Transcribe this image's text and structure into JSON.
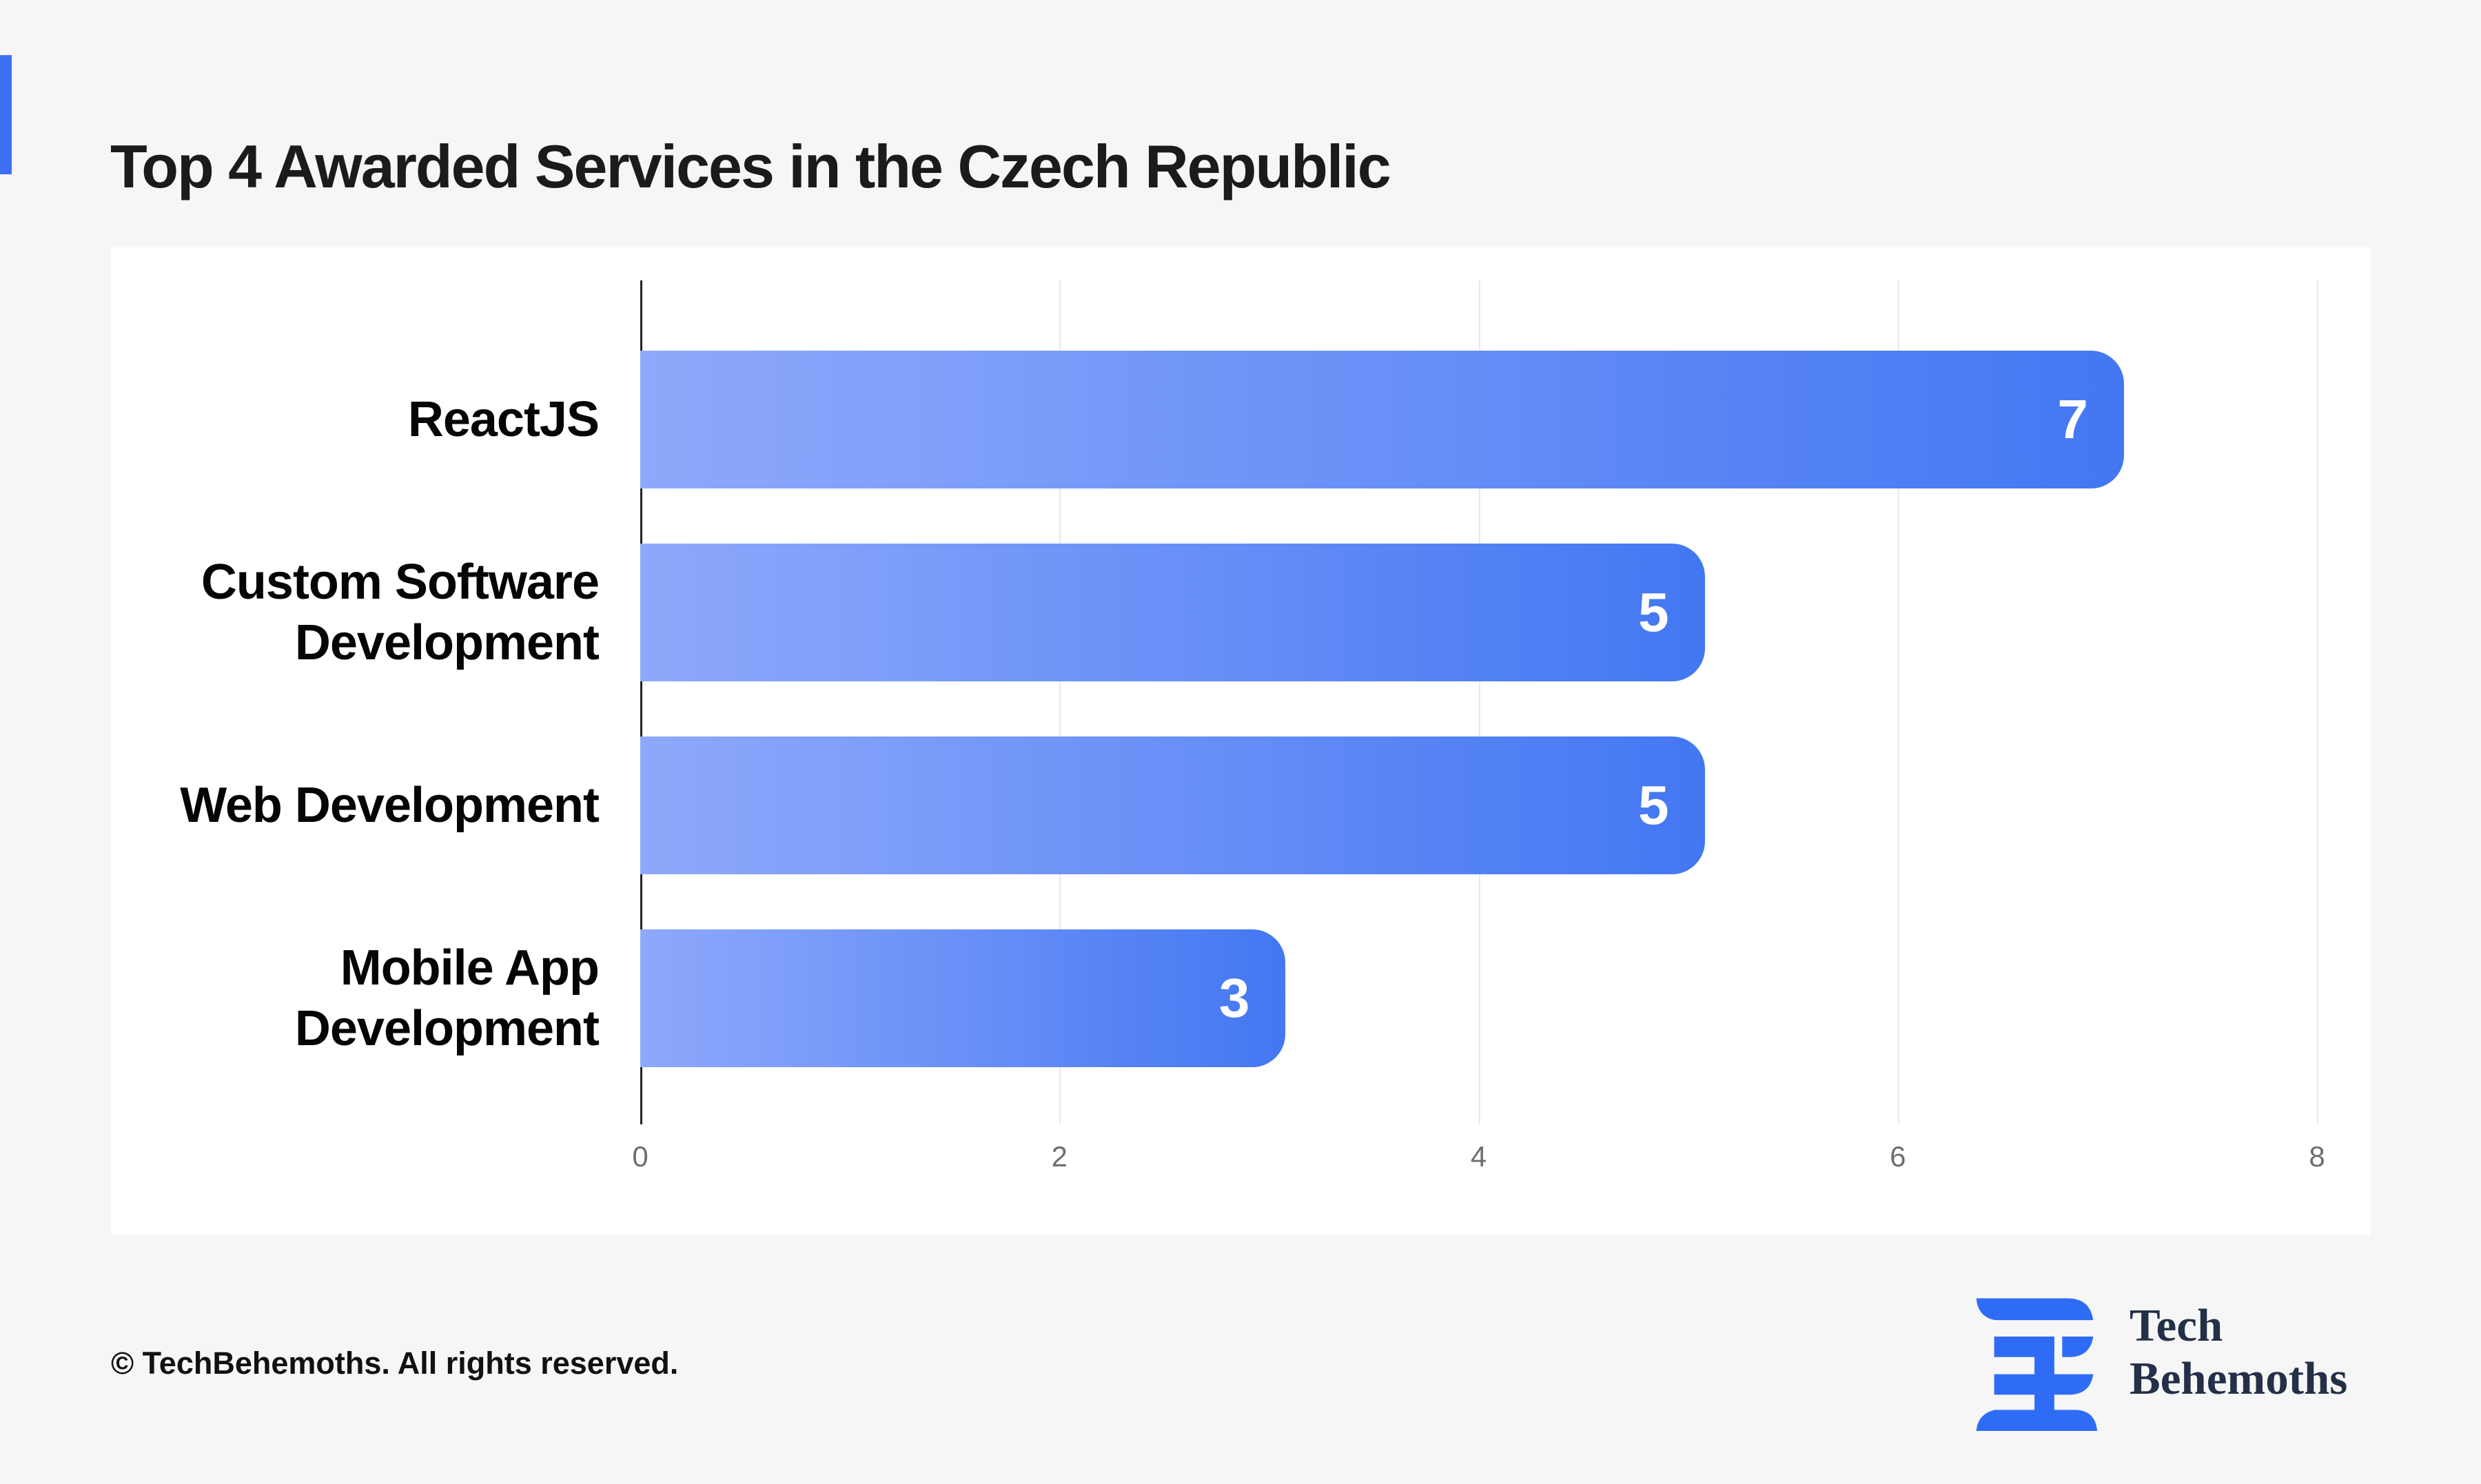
{
  "page": {
    "title": "Top 4 Awarded Services in the Czech Republic",
    "background_color": "#f6f6f6",
    "card_color": "#ffffff",
    "accent_color": "#3e70f7"
  },
  "chart_data": {
    "type": "bar",
    "orientation": "horizontal",
    "title": "Top 4 Awarded Services in the Czech Republic",
    "categories": [
      "ReactJS",
      "Custom Software Development",
      "Web Development",
      "Mobile App Development"
    ],
    "values": [
      7,
      5,
      5,
      3
    ],
    "xlabel": "",
    "ylabel": "",
    "xlim": [
      0,
      8
    ],
    "x_ticks": [
      0,
      2,
      4,
      6,
      8
    ],
    "grid": true,
    "legend": false,
    "bar_gradient_start": "#8ea9fb",
    "bar_gradient_end": "#4377f2",
    "value_label_color": "#ffffff",
    "tick_label_color": "#6e6e6e",
    "gridline_color": "#e9e9e9",
    "axis_line_color": "#232323"
  },
  "footer": {
    "copyright": "© TechBehemoths. All rights reserved."
  },
  "logo": {
    "icon": "techbehemoths-logo-icon",
    "line1": "Tech",
    "line2": "Behemoths",
    "glyph_color": "#2f6cf6",
    "text_color": "#233047"
  }
}
